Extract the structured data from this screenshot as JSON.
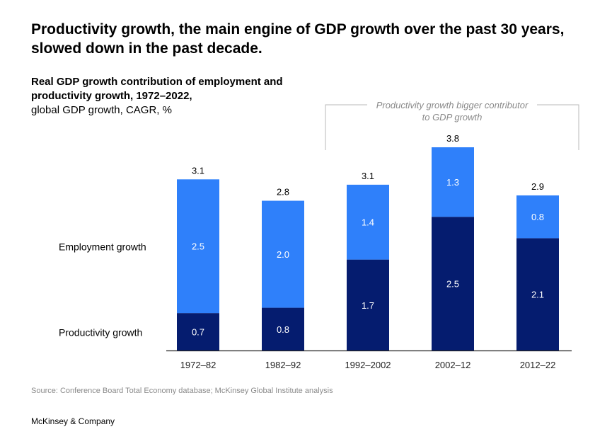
{
  "headline": "Productivity growth, the main engine of GDP growth over the past 30 years, slowed down in the past decade.",
  "footer": {
    "source": "Source: Conference Board Total Economy database; McKinsey Global Institute analysis",
    "brand": "McKinsey & Company"
  },
  "colors": {
    "employment": "#2f80fa",
    "productivity": "#051c6f",
    "bracket": "#b8b8b8",
    "axis": "#222222"
  },
  "chart_data": {
    "type": "bar",
    "stacked": true,
    "title": "Real GDP growth contribution of employment and productivity growth, 1972–2022,",
    "subtitle": "global GDP growth, CAGR, %",
    "xlabel": "",
    "ylabel": "",
    "ylim": [
      0,
      3.8
    ],
    "categories": [
      "1972–82",
      "1982–92",
      "1992–2002",
      "2002–12",
      "2012–22"
    ],
    "series": [
      {
        "name": "Productivity growth",
        "values": [
          0.7,
          0.8,
          1.7,
          2.5,
          2.1
        ],
        "labels": [
          "0.7",
          "0.8",
          "1.7",
          "2.5",
          "2.1"
        ]
      },
      {
        "name": "Employment growth",
        "values": [
          2.5,
          2.0,
          1.4,
          1.3,
          0.8
        ],
        "labels": [
          "2.5",
          "2.0",
          "1.4",
          "1.3",
          "0.8"
        ]
      }
    ],
    "totals": [
      "3.1",
      "2.8",
      "3.1",
      "3.8",
      "2.9"
    ],
    "legend": [
      "Employment growth",
      "Productivity growth"
    ],
    "annotation": {
      "lines": [
        "Productivity growth bigger contributor",
        "to GDP growth"
      ],
      "categories": [
        "1992–2002",
        "2002–12",
        "2012–22"
      ]
    }
  }
}
